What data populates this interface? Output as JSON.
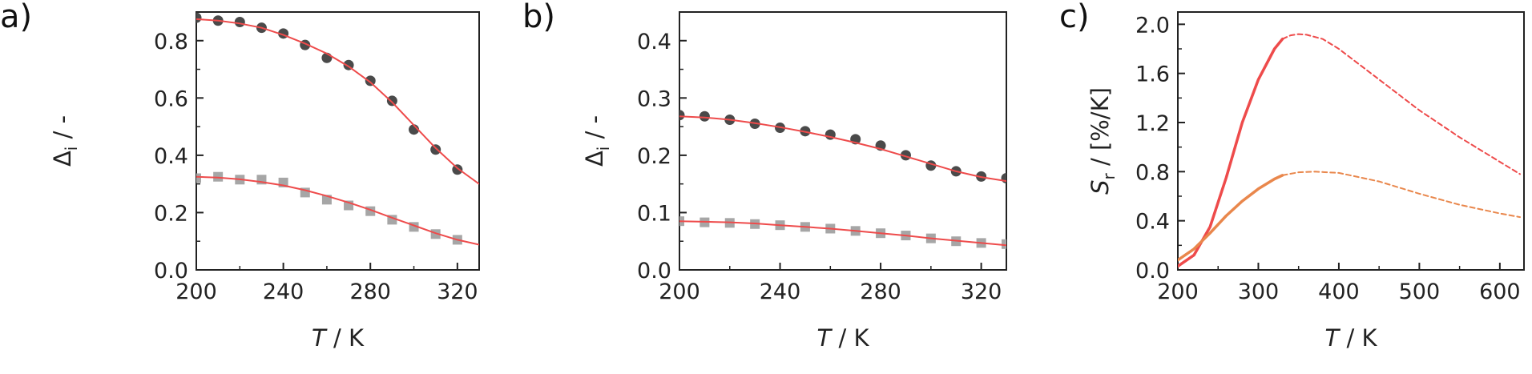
{
  "chart_data": [
    {
      "type": "scatter",
      "panel_label": "a)",
      "xlabel": {
        "italic": "T",
        "rest": " / K"
      },
      "ylabel": {
        "main": "Δ",
        "sub": "i",
        "rest": " / -"
      },
      "xlim": [
        200,
        330
      ],
      "ylim": [
        0,
        0.9
      ],
      "xticks": [
        "200",
        "240",
        "280",
        "320"
      ],
      "yticks": [
        "0.0",
        "0.2",
        "0.4",
        "0.6",
        "0.8"
      ],
      "series": [
        {
          "marker": "circle",
          "color": "#4a4a4a",
          "x": [
            200,
            210,
            220,
            230,
            240,
            250,
            260,
            270,
            280,
            290,
            300,
            310,
            320
          ],
          "y": [
            0.88,
            0.87,
            0.865,
            0.845,
            0.825,
            0.785,
            0.74,
            0.715,
            0.66,
            0.59,
            0.49,
            0.42,
            0.35
          ]
        },
        {
          "marker": "square",
          "color": "#a6a6a6",
          "x": [
            200,
            210,
            220,
            230,
            240,
            250,
            260,
            270,
            280,
            290,
            300,
            310,
            320
          ],
          "y": [
            0.32,
            0.325,
            0.315,
            0.315,
            0.305,
            0.27,
            0.245,
            0.225,
            0.205,
            0.175,
            0.15,
            0.125,
            0.105
          ]
        }
      ],
      "fits": [
        {
          "style": "solid",
          "color": "#ee4b4b",
          "x": [
            200,
            210,
            220,
            230,
            240,
            250,
            260,
            270,
            280,
            290,
            300,
            310,
            320,
            330
          ],
          "y": [
            0.875,
            0.87,
            0.86,
            0.845,
            0.82,
            0.79,
            0.755,
            0.71,
            0.655,
            0.585,
            0.505,
            0.425,
            0.355,
            0.3
          ]
        },
        {
          "style": "solid",
          "color": "#ee4b4b",
          "x": [
            200,
            210,
            220,
            230,
            240,
            250,
            260,
            270,
            280,
            290,
            300,
            310,
            320,
            330
          ],
          "y": [
            0.325,
            0.322,
            0.316,
            0.307,
            0.295,
            0.278,
            0.258,
            0.235,
            0.21,
            0.182,
            0.155,
            0.128,
            0.105,
            0.088
          ]
        }
      ]
    },
    {
      "type": "scatter",
      "panel_label": "b)",
      "xlabel": {
        "italic": "T",
        "rest": " / K"
      },
      "ylabel": {
        "main": "Δ",
        "sub": "i",
        "rest": " / -"
      },
      "xlim": [
        200,
        330
      ],
      "ylim": [
        0,
        0.45
      ],
      "xticks": [
        "200",
        "240",
        "280",
        "320"
      ],
      "yticks": [
        "0.0",
        "0.1",
        "0.2",
        "0.3",
        "0.4"
      ],
      "series": [
        {
          "marker": "circle",
          "color": "#4a4a4a",
          "x": [
            200,
            210,
            220,
            230,
            240,
            250,
            260,
            270,
            280,
            290,
            300,
            310,
            320,
            330
          ],
          "y": [
            0.27,
            0.268,
            0.262,
            0.255,
            0.248,
            0.242,
            0.236,
            0.228,
            0.217,
            0.2,
            0.182,
            0.172,
            0.163,
            0.16
          ]
        },
        {
          "marker": "square",
          "color": "#a6a6a6",
          "x": [
            200,
            210,
            220,
            230,
            240,
            250,
            260,
            270,
            280,
            290,
            300,
            310,
            320,
            330
          ],
          "y": [
            0.085,
            0.083,
            0.082,
            0.08,
            0.078,
            0.075,
            0.072,
            0.068,
            0.064,
            0.06,
            0.055,
            0.05,
            0.047,
            0.045
          ]
        }
      ],
      "fits": [
        {
          "style": "solid",
          "color": "#ee4b4b",
          "x": [
            200,
            210,
            220,
            230,
            240,
            250,
            260,
            270,
            280,
            290,
            300,
            310,
            320,
            330
          ],
          "y": [
            0.268,
            0.266,
            0.262,
            0.256,
            0.249,
            0.241,
            0.232,
            0.222,
            0.211,
            0.198,
            0.185,
            0.172,
            0.162,
            0.155
          ]
        },
        {
          "style": "solid",
          "color": "#ee4b4b",
          "x": [
            200,
            210,
            220,
            230,
            240,
            250,
            260,
            270,
            280,
            290,
            300,
            310,
            320,
            330
          ],
          "y": [
            0.085,
            0.084,
            0.083,
            0.081,
            0.078,
            0.075,
            0.072,
            0.068,
            0.064,
            0.06,
            0.055,
            0.051,
            0.047,
            0.043
          ]
        }
      ]
    },
    {
      "type": "line",
      "panel_label": "c)",
      "xlabel": {
        "italic": "T",
        "rest": " / K"
      },
      "ylabel": {
        "main": "S",
        "sub": "r",
        "rest": " / [%/K]"
      },
      "xlim": [
        200,
        630
      ],
      "ylim": [
        0,
        2.1
      ],
      "xticks": [
        "200",
        "300",
        "400",
        "500",
        "600"
      ],
      "yticks": [
        "0.0",
        "0.4",
        "0.8",
        "1.2",
        "1.6",
        "2.0"
      ],
      "series": [
        {
          "color": "#ee4b4b",
          "style": "solid",
          "width": 3.5,
          "x": [
            200,
            220,
            240,
            260,
            280,
            300,
            320,
            330
          ],
          "y": [
            0.03,
            0.12,
            0.35,
            0.75,
            1.2,
            1.55,
            1.8,
            1.88
          ]
        },
        {
          "color": "#ee4b4b",
          "style": "dashed",
          "width": 2,
          "x": [
            330,
            340,
            350,
            360,
            380,
            400,
            450,
            500,
            550,
            600,
            625
          ],
          "y": [
            1.88,
            1.91,
            1.92,
            1.915,
            1.88,
            1.8,
            1.55,
            1.3,
            1.08,
            0.88,
            0.78
          ]
        },
        {
          "color": "#e9874c",
          "style": "solid",
          "width": 3.5,
          "x": [
            200,
            220,
            240,
            260,
            280,
            300,
            320,
            330
          ],
          "y": [
            0.08,
            0.17,
            0.3,
            0.44,
            0.56,
            0.66,
            0.74,
            0.77
          ]
        },
        {
          "color": "#e9874c",
          "style": "dashed",
          "width": 2,
          "x": [
            330,
            350,
            370,
            400,
            450,
            500,
            550,
            600,
            625
          ],
          "y": [
            0.77,
            0.795,
            0.8,
            0.79,
            0.72,
            0.62,
            0.53,
            0.46,
            0.43
          ]
        }
      ]
    }
  ]
}
